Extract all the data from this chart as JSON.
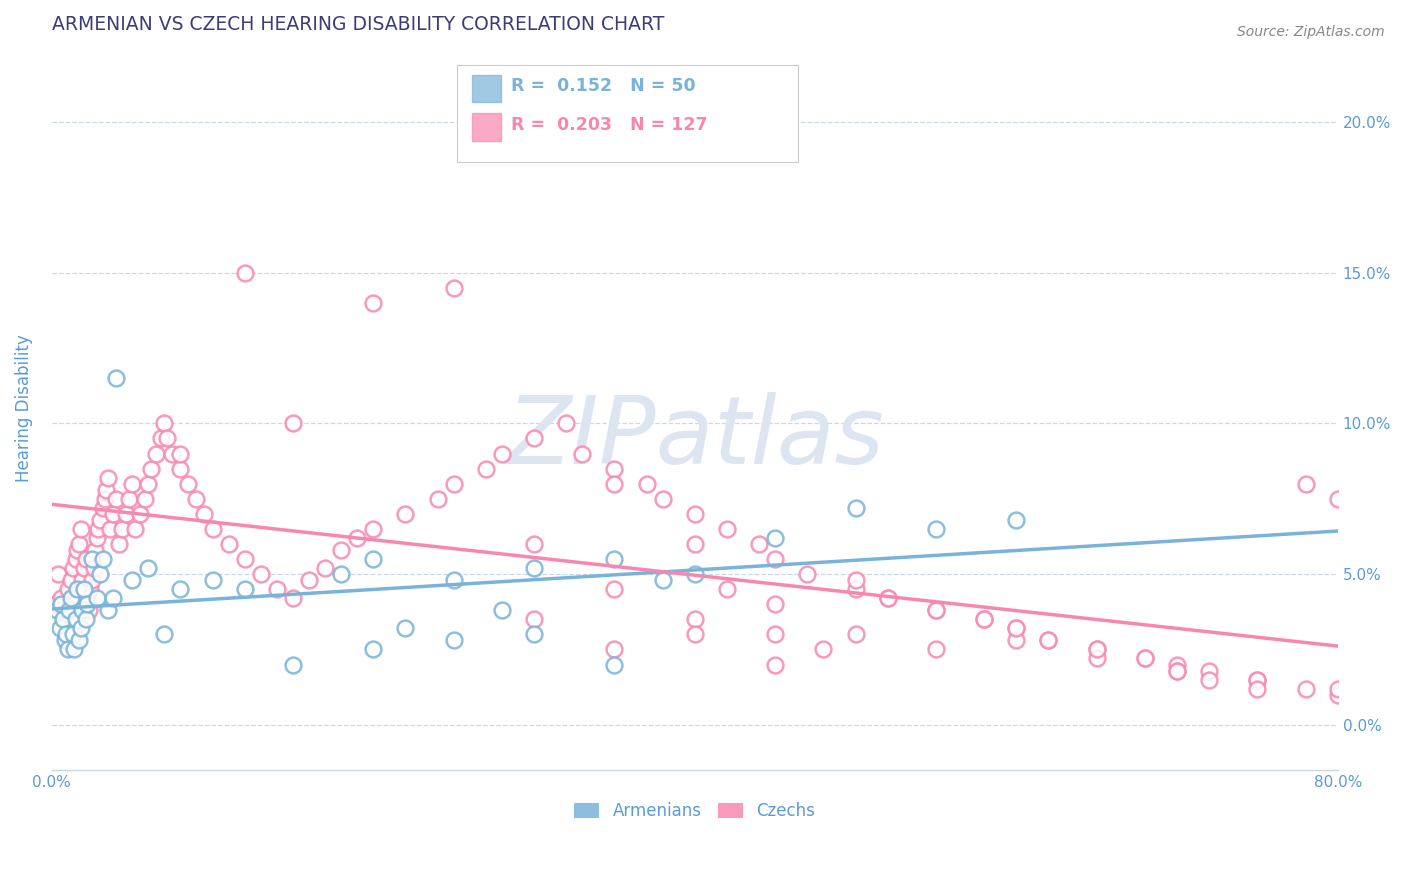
{
  "title": "ARMENIAN VS CZECH HEARING DISABILITY CORRELATION CHART",
  "source": "Source: ZipAtlas.com",
  "ylabel": "Hearing Disability",
  "xlim": [
    0.0,
    0.8
  ],
  "ylim": [
    -0.015,
    0.225
  ],
  "xticks": [
    0.0,
    0.1,
    0.2,
    0.3,
    0.4,
    0.5,
    0.6,
    0.7,
    0.8
  ],
  "xtick_labels": [
    "0.0%",
    "",
    "",
    "",
    "",
    "",
    "",
    "",
    "80.0%"
  ],
  "yticks": [
    0.0,
    0.05,
    0.1,
    0.15,
    0.2
  ],
  "ytick_labels": [
    "0.0%",
    "5.0%",
    "10.0%",
    "15.0%",
    "20.0%"
  ],
  "armenian_color": "#7ab3d9",
  "czech_color": "#f887b0",
  "title_color": "#3c3c7a",
  "tick_color": "#5b9bd5",
  "grid_color": "#c8d8e8",
  "legend_R_armenian": "R =  0.152",
  "legend_N_armenian": "N = 50",
  "legend_R_czech": "R =  0.203",
  "legend_N_czech": "N = 127",
  "armenian_x": [
    0.003,
    0.005,
    0.006,
    0.007,
    0.008,
    0.009,
    0.01,
    0.011,
    0.012,
    0.013,
    0.014,
    0.015,
    0.016,
    0.017,
    0.018,
    0.019,
    0.02,
    0.021,
    0.022,
    0.025,
    0.028,
    0.03,
    0.032,
    0.035,
    0.038,
    0.04,
    0.05,
    0.06,
    0.07,
    0.08,
    0.1,
    0.12,
    0.15,
    0.18,
    0.2,
    0.22,
    0.25,
    0.28,
    0.3,
    0.35,
    0.38,
    0.4,
    0.45,
    0.5,
    0.55,
    0.6,
    0.25,
    0.3,
    0.35,
    0.2
  ],
  "armenian_y": [
    0.038,
    0.032,
    0.04,
    0.035,
    0.028,
    0.03,
    0.025,
    0.038,
    0.042,
    0.03,
    0.025,
    0.035,
    0.045,
    0.028,
    0.032,
    0.038,
    0.045,
    0.035,
    0.04,
    0.055,
    0.042,
    0.05,
    0.055,
    0.038,
    0.042,
    0.115,
    0.048,
    0.052,
    0.03,
    0.045,
    0.048,
    0.045,
    0.02,
    0.05,
    0.055,
    0.032,
    0.048,
    0.038,
    0.052,
    0.055,
    0.048,
    0.05,
    0.062,
    0.072,
    0.065,
    0.068,
    0.028,
    0.03,
    0.02,
    0.025
  ],
  "czech_x": [
    0.002,
    0.004,
    0.006,
    0.008,
    0.01,
    0.012,
    0.013,
    0.015,
    0.016,
    0.017,
    0.018,
    0.019,
    0.02,
    0.021,
    0.022,
    0.023,
    0.024,
    0.025,
    0.026,
    0.027,
    0.028,
    0.029,
    0.03,
    0.032,
    0.033,
    0.034,
    0.035,
    0.036,
    0.038,
    0.04,
    0.042,
    0.044,
    0.046,
    0.048,
    0.05,
    0.052,
    0.055,
    0.058,
    0.06,
    0.062,
    0.065,
    0.068,
    0.07,
    0.072,
    0.075,
    0.08,
    0.085,
    0.09,
    0.095,
    0.1,
    0.11,
    0.12,
    0.13,
    0.14,
    0.15,
    0.16,
    0.17,
    0.18,
    0.19,
    0.2,
    0.22,
    0.24,
    0.25,
    0.27,
    0.28,
    0.3,
    0.32,
    0.33,
    0.35,
    0.37,
    0.38,
    0.4,
    0.42,
    0.44,
    0.45,
    0.47,
    0.5,
    0.52,
    0.55,
    0.58,
    0.6,
    0.62,
    0.65,
    0.68,
    0.7,
    0.72,
    0.75,
    0.78,
    0.8,
    0.08,
    0.12,
    0.15,
    0.2,
    0.25,
    0.3,
    0.35,
    0.4,
    0.45,
    0.5,
    0.55,
    0.6,
    0.65,
    0.7,
    0.75,
    0.8,
    0.35,
    0.4,
    0.42,
    0.45,
    0.48,
    0.5,
    0.52,
    0.55,
    0.58,
    0.6,
    0.62,
    0.65,
    0.68,
    0.7,
    0.72,
    0.75,
    0.78,
    0.8,
    0.3,
    0.35,
    0.4,
    0.45
  ],
  "czech_y": [
    0.04,
    0.05,
    0.042,
    0.038,
    0.045,
    0.048,
    0.052,
    0.055,
    0.058,
    0.06,
    0.065,
    0.048,
    0.052,
    0.055,
    0.042,
    0.038,
    0.045,
    0.048,
    0.052,
    0.058,
    0.062,
    0.065,
    0.068,
    0.072,
    0.075,
    0.078,
    0.082,
    0.065,
    0.07,
    0.075,
    0.06,
    0.065,
    0.07,
    0.075,
    0.08,
    0.065,
    0.07,
    0.075,
    0.08,
    0.085,
    0.09,
    0.095,
    0.1,
    0.095,
    0.09,
    0.085,
    0.08,
    0.075,
    0.07,
    0.065,
    0.06,
    0.055,
    0.05,
    0.045,
    0.042,
    0.048,
    0.052,
    0.058,
    0.062,
    0.065,
    0.07,
    0.075,
    0.08,
    0.085,
    0.09,
    0.095,
    0.1,
    0.09,
    0.085,
    0.08,
    0.075,
    0.07,
    0.065,
    0.06,
    0.055,
    0.05,
    0.045,
    0.042,
    0.038,
    0.035,
    0.032,
    0.028,
    0.025,
    0.022,
    0.02,
    0.018,
    0.015,
    0.012,
    0.01,
    0.09,
    0.15,
    0.1,
    0.14,
    0.145,
    0.06,
    0.045,
    0.035,
    0.04,
    0.03,
    0.025,
    0.028,
    0.022,
    0.018,
    0.015,
    0.012,
    0.08,
    0.06,
    0.045,
    0.03,
    0.025,
    0.048,
    0.042,
    0.038,
    0.035,
    0.032,
    0.028,
    0.025,
    0.022,
    0.018,
    0.015,
    0.012,
    0.08,
    0.075,
    0.035,
    0.025,
    0.03,
    0.02
  ]
}
